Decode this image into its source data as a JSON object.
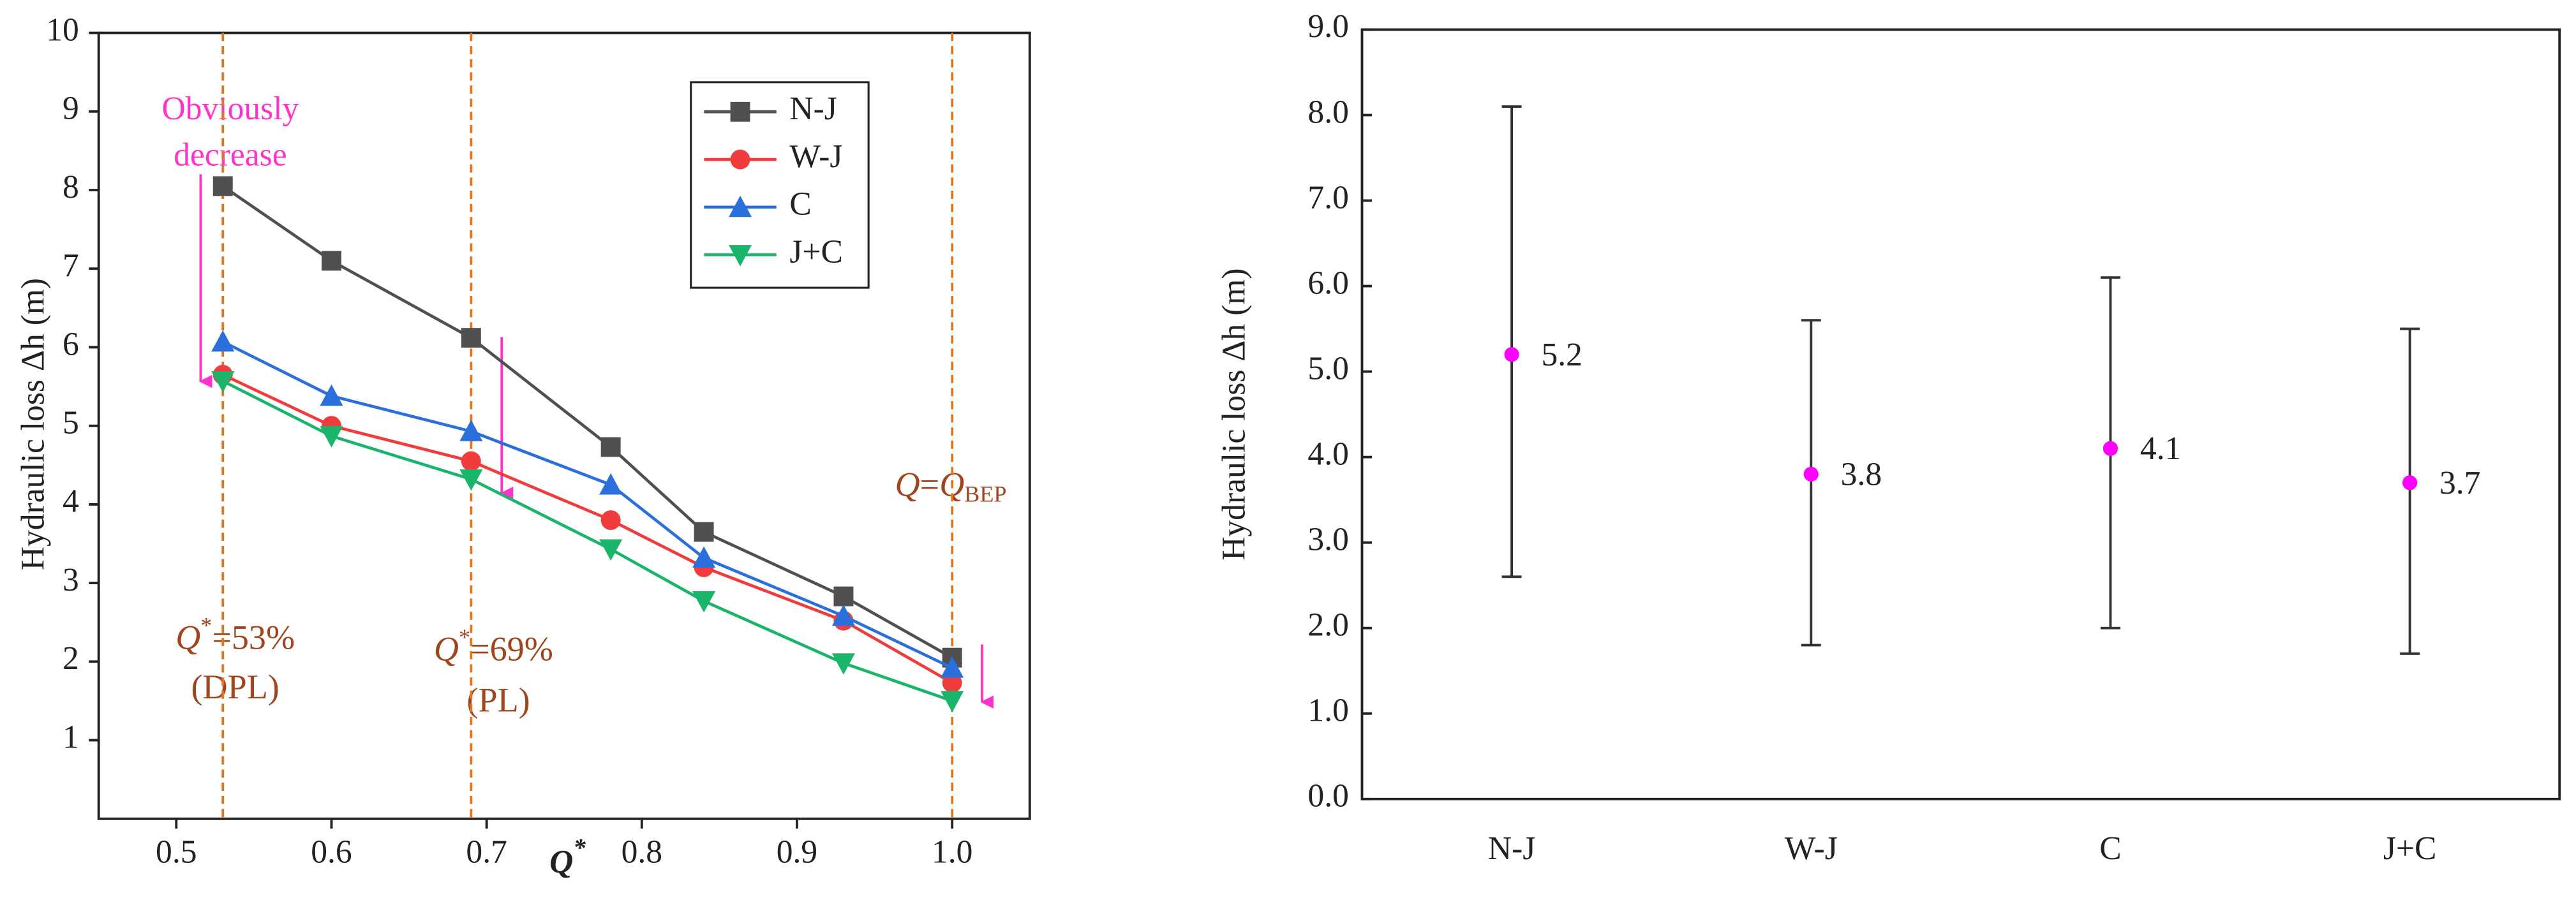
{
  "chart_data": [
    {
      "type": "line",
      "ylabel": "Hydraulic loss  Δh  (m)",
      "xlabel": {
        "main": "Q",
        "sup": "*"
      },
      "x": [
        0.53,
        0.6,
        0.69,
        0.78,
        0.84,
        0.93,
        1.0
      ],
      "series": [
        {
          "name": "N-J",
          "color": "#505050",
          "marker": "square",
          "values": [
            8.05,
            7.1,
            6.12,
            4.73,
            3.65,
            2.83,
            2.05
          ]
        },
        {
          "name": "W-J",
          "color": "#f03c3c",
          "marker": "circle",
          "values": [
            5.65,
            5.0,
            4.55,
            3.8,
            3.2,
            2.52,
            1.73
          ]
        },
        {
          "name": "C",
          "color": "#2a6fdc",
          "marker": "triangle-up",
          "values": [
            6.07,
            5.38,
            4.93,
            4.25,
            3.32,
            2.58,
            1.92
          ]
        },
        {
          "name": "J+C",
          "color": "#1ab46a",
          "marker": "triangle-down",
          "values": [
            5.57,
            4.87,
            4.32,
            3.43,
            2.77,
            1.98,
            1.5
          ]
        }
      ],
      "xlim": [
        0.45,
        1.05
      ],
      "xticks": [
        0.5,
        0.6,
        0.7,
        0.8,
        0.9,
        {
          "value": 1,
          "label": "1.0"
        }
      ],
      "ylim": [
        0,
        10
      ],
      "yticks": [
        1,
        2,
        3,
        4,
        5,
        6,
        7,
        8,
        9,
        10
      ],
      "reference_lines": [
        0.53,
        0.69,
        1.0
      ],
      "legend": "upper right",
      "annotations": {
        "decrease": [
          "Obviously",
          "decrease"
        ],
        "q53": {
          "parts": [
            "Q",
            "*",
            "=53%"
          ],
          "note": "(DPL)"
        },
        "q69": {
          "parts": [
            "Q",
            "*",
            "=69%"
          ],
          "note": "(PL)"
        },
        "qbep": {
          "parts": [
            "Q",
            "=",
            "Q",
            "BEP"
          ]
        }
      }
    },
    {
      "type": "errorbar",
      "ylabel": "Hydraulic loss Δh (m)",
      "categories": [
        "N-J",
        "W-J",
        "C",
        "J+C"
      ],
      "values": [
        5.2,
        3.8,
        4.1,
        3.7
      ],
      "lower": [
        2.6,
        1.8,
        2.0,
        1.7
      ],
      "upper": [
        8.1,
        5.6,
        6.1,
        5.5
      ],
      "color": "#ff00ff",
      "ylim": [
        0,
        9
      ],
      "yticks": [
        {
          "value": 0,
          "label": "0.0"
        },
        {
          "value": 1,
          "label": "1.0"
        },
        {
          "value": 2,
          "label": "2.0"
        },
        {
          "value": 3,
          "label": "3.0"
        },
        {
          "value": 4,
          "label": "4.0"
        },
        {
          "value": 5,
          "label": "5.0"
        },
        {
          "value": 6,
          "label": "6.0"
        },
        {
          "value": 7,
          "label": "7.0"
        },
        {
          "value": 8,
          "label": "8.0"
        },
        {
          "value": 9,
          "label": "9.0"
        }
      ]
    }
  ]
}
